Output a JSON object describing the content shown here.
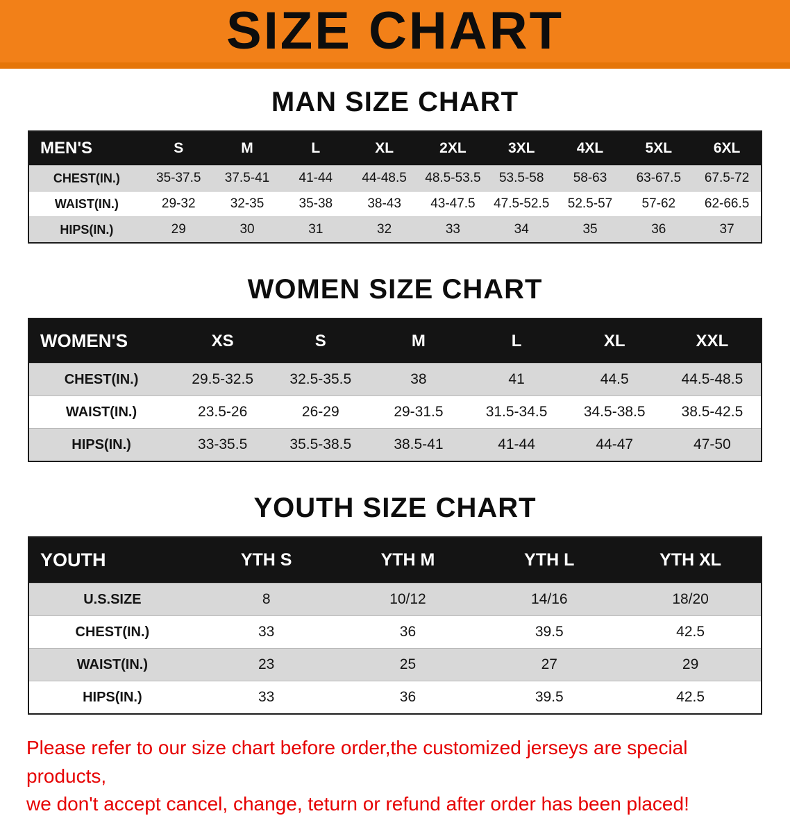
{
  "banner": {
    "title": "SIZE CHART",
    "bg_color": "#f28018"
  },
  "sections": [
    {
      "heading": "MAN SIZE CHART",
      "table": {
        "header": [
          "MEN'S",
          "S",
          "M",
          "L",
          "XL",
          "2XL",
          "3XL",
          "4XL",
          "5XL",
          "6XL"
        ],
        "rows": [
          [
            "CHEST(IN.)",
            "35-37.5",
            "37.5-41",
            "41-44",
            "44-48.5",
            "48.5-53.5",
            "53.5-58",
            "58-63",
            "63-67.5",
            "67.5-72"
          ],
          [
            "WAIST(IN.)",
            "29-32",
            "32-35",
            "35-38",
            "38-43",
            "43-47.5",
            "47.5-52.5",
            "52.5-57",
            "57-62",
            "62-66.5"
          ],
          [
            "HIPS(IN.)",
            "29",
            "30",
            "31",
            "32",
            "33",
            "34",
            "35",
            "36",
            "37"
          ]
        ]
      }
    },
    {
      "heading": "WOMEN SIZE CHART",
      "table": {
        "header": [
          "WOMEN'S",
          "XS",
          "S",
          "M",
          "L",
          "XL",
          "XXL"
        ],
        "rows": [
          [
            "CHEST(IN.)",
            "29.5-32.5",
            "32.5-35.5",
            "38",
            "41",
            "44.5",
            "44.5-48.5"
          ],
          [
            "WAIST(IN.)",
            "23.5-26",
            "26-29",
            "29-31.5",
            "31.5-34.5",
            "34.5-38.5",
            "38.5-42.5"
          ],
          [
            "HIPS(IN.)",
            "33-35.5",
            "35.5-38.5",
            "38.5-41",
            "41-44",
            "44-47",
            "47-50"
          ]
        ]
      }
    },
    {
      "heading": "YOUTH SIZE CHART",
      "table": {
        "header": [
          "YOUTH",
          "YTH S",
          "YTH M",
          "YTH L",
          "YTH XL"
        ],
        "rows": [
          [
            "U.S.SIZE",
            "8",
            "10/12",
            "14/16",
            "18/20"
          ],
          [
            "CHEST(IN.)",
            "33",
            "36",
            "39.5",
            "42.5"
          ],
          [
            "WAIST(IN.)",
            "23",
            "25",
            "27",
            "29"
          ],
          [
            "HIPS(IN.)",
            "33",
            "36",
            "39.5",
            "42.5"
          ]
        ]
      }
    }
  ],
  "footer": {
    "color": "#e60000",
    "lines": [
      "Please refer to our size chart before order,the customized jerseys are special products,",
      "we don't accept cancel, change, teturn or refund after order has been placed!"
    ]
  }
}
